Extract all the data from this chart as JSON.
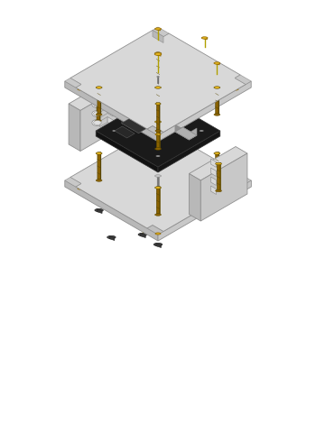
{
  "bg_color": "#ffffff",
  "plate_top": "#d8d8d8",
  "plate_left": "#b8b8b8",
  "plate_right": "#c8c8c8",
  "plate_edge": "#909090",
  "gold": "#c8940a",
  "gold_light": "#e8b820",
  "gold_dark": "#8a6200",
  "gold_mid": "#d4a010",
  "pcb_top": "#1a1a1a",
  "pcb_left": "#111111",
  "pcb_right": "#161616",
  "rubber": "#484848",
  "rubber_edge": "#222222",
  "silver": "#b0b0b0",
  "silver_dark": "#808080",
  "comp_dark": "#2a2a2a",
  "conn_color": "#b0b0b0",
  "white": "#ffffff"
}
